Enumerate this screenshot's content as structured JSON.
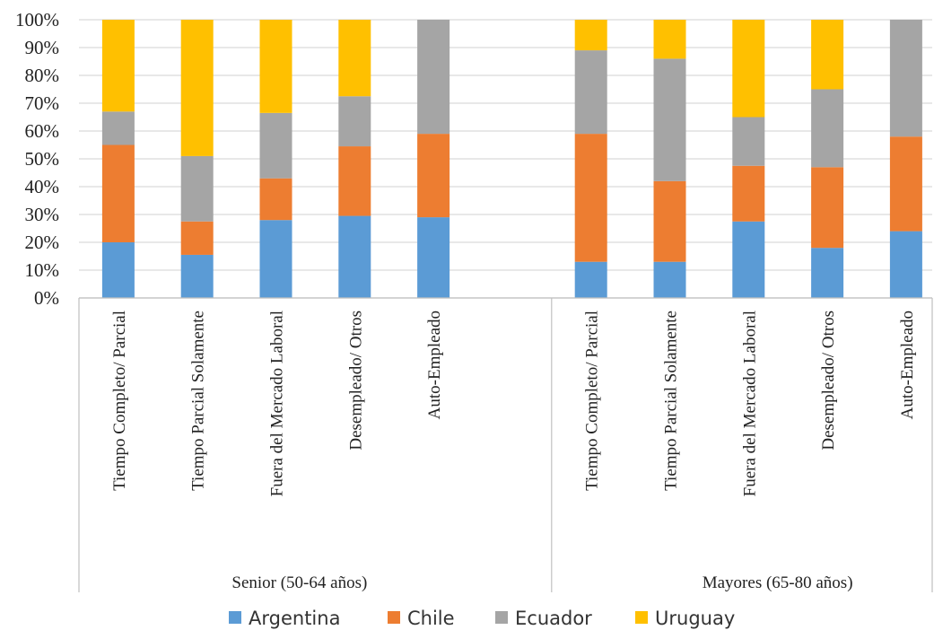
{
  "chart_data": {
    "type": "bar",
    "stacked": true,
    "percent": true,
    "title": "",
    "xlabel": "",
    "ylabel": "",
    "ylim": [
      0,
      100
    ],
    "yticks": [
      "0%",
      "10%",
      "20%",
      "30%",
      "40%",
      "50%",
      "60%",
      "70%",
      "80%",
      "90%",
      "100%"
    ],
    "grid": true,
    "legend_position": "bottom",
    "groups": [
      {
        "label": "Senior (50-64 años)",
        "categories": [
          "Tiempo Completo/ Parcial",
          "Tiempo Parcial Solamente",
          "Fuera del Mercado Laboral",
          "Desempleado/ Otros",
          "Auto-Empleado"
        ]
      },
      {
        "label": "Mayores (65-80 años)",
        "categories": [
          "Tiempo Completo/ Parcial",
          "Tiempo Parcial Solamente",
          "Fuera del Mercado Laboral",
          "Desempleado/ Otros",
          "Auto-Empleado"
        ]
      }
    ],
    "series": [
      {
        "name": "Argentina",
        "color": "#5B9BD5",
        "values": [
          [
            20,
            15.5,
            28,
            29.5,
            29
          ],
          [
            13,
            13,
            27.5,
            18,
            24
          ]
        ]
      },
      {
        "name": "Chile",
        "color": "#ED7D31",
        "values": [
          [
            35,
            12,
            15,
            25,
            30
          ],
          [
            46,
            29,
            20,
            29,
            34
          ]
        ]
      },
      {
        "name": "Ecuador",
        "color": "#A5A5A5",
        "values": [
          [
            12,
            23.5,
            23.5,
            18,
            41
          ],
          [
            30,
            44,
            17.5,
            28,
            42
          ]
        ]
      },
      {
        "name": "Uruguay",
        "color": "#FFC000",
        "values": [
          [
            33,
            49,
            33.5,
            27.5,
            0
          ],
          [
            11,
            14,
            35,
            25,
            0
          ]
        ]
      }
    ]
  }
}
